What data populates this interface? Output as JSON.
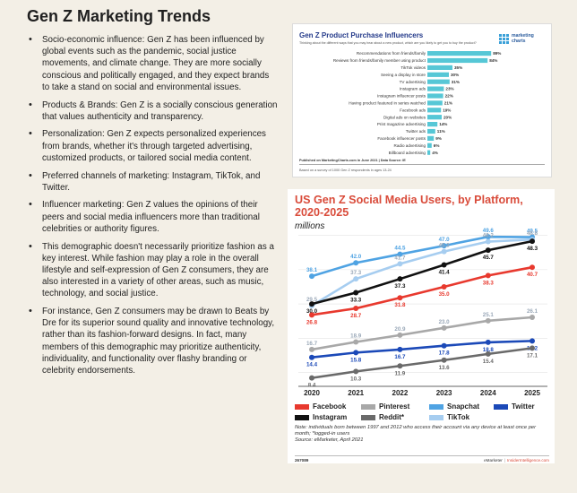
{
  "page": {
    "title": "Gen Z Marketing Trends",
    "bullets": [
      "Socio-economic influence: Gen Z has been influenced by global events such as the pandemic, social justice movements, and climate change. They are more socially conscious and politically engaged, and they expect brands to take a stand on social and environmental issues.",
      "Products & Brands:  Gen Z is a socially conscious generation that values authenticity and transparency.",
      "Personalization: Gen Z expects personalized experiences from brands, whether it's through targeted advertising, customized products, or tailored social media content.",
      "Preferred channels of marketing: Instagram, TikTok, and Twitter.",
      "Influencer marketing: Gen Z values the opinions of their peers and social media influencers more than traditional celebrities or authority figures.",
      "This demographic doesn't necessarily prioritize fashion as a key interest. While fashion may play a role in the overall lifestyle and self-expression of Gen Z consumers, they are also interested in a variety of other areas, such as music, technology, and social justice.",
      "For instance, Gen Z consumers may be drawn to Beats by Dre for its superior sound quality and innovative technology, rather than its fashion-forward designs. In fact, many members of this demographic may prioritize authenticity, individuality, and functionality over flashy branding or celebrity endorsements."
    ]
  },
  "influencer_panel": {
    "logo_text": [
      "marketing",
      "charts"
    ],
    "note": "Published on MarketingCharts.com in June 2021 | Data Source: IE",
    "footer": "Based on a survey of 1000 Gen Z respondents in ages 13-24"
  },
  "social_panel": {
    "legend": [
      {
        "name": "Facebook",
        "color": "#e8392e"
      },
      {
        "name": "Pinterest",
        "color": "#a8a8a8"
      },
      {
        "name": "Snapchat",
        "color": "#4fa3e3"
      },
      {
        "name": "Twitter",
        "color": "#1b49b8"
      },
      {
        "name": "Instagram",
        "color": "#111111"
      },
      {
        "name": "Reddit*",
        "color": "#6a6a6a"
      },
      {
        "name": "TikTok",
        "color": "#a6cdf0"
      }
    ],
    "note": "Note: individuals born between 1997 and 2012 who access their account via any device at least once per month; *logged-in users\nSource: eMarketer, April 2021",
    "code": "267089",
    "brand": "eMarketer",
    "site": "InsiderIntelligence.com"
  },
  "chart_data": [
    {
      "type": "bar",
      "title": "Gen Z Product Purchase Influencers",
      "subtitle": "Thinking about the different ways that you may hear about a new product, which are you likely to get you to buy the product?",
      "categories": [
        "Recommendations from friends/family",
        "Reviews from friends/family member using product",
        "TikTok videos",
        "Seeing a display in store",
        "TV advertising",
        "Instagram ads",
        "Instagram influencer posts",
        "Having product featured in series watched",
        "Facebook ads",
        "Digital ads on websites",
        "Print magazine advertising",
        "Twitter ads",
        "Facebook influencer posts",
        "Radio advertising",
        "Billboard advertising"
      ],
      "values": [
        89,
        84,
        35,
        30,
        31,
        23,
        22,
        21,
        19,
        20,
        14,
        11,
        9,
        6,
        4
      ],
      "value_labels": [
        "89%",
        "84%",
        "35%",
        "30%",
        "31%",
        "23%",
        "22%",
        "21%",
        "19%",
        "20%",
        "14%",
        "11%",
        "9%",
        "6%",
        "4%"
      ],
      "xlim": [
        0,
        100
      ],
      "bar_color": "#56c7d6",
      "grid": false
    },
    {
      "type": "line",
      "title": "US Gen Z Social Media Users, by Platform, 2020-2025",
      "ylabel": "millions",
      "x": [
        "2020",
        "2021",
        "2022",
        "2023",
        "2024",
        "2025"
      ],
      "ylim": [
        7,
        52
      ],
      "grid": true,
      "series": [
        {
          "name": "Snapchat",
          "values": [
            38.1,
            42.0,
            44.5,
            47.0,
            49.6,
            49.5
          ],
          "labels": [
            "38.1",
            "42.0",
            "44.5",
            "47.0",
            "49.6",
            "49.5"
          ]
        },
        {
          "name": "TikTok",
          "values": [
            29.5,
            37.3,
            41.7,
            45.3,
            48.2,
            48.8
          ],
          "labels": [
            "29.5",
            "37.3",
            "41.7",
            "45.3",
            "48.2",
            "48.8"
          ]
        },
        {
          "name": "Instagram",
          "values": [
            30.0,
            33.3,
            37.3,
            41.4,
            45.7,
            48.3
          ],
          "labels": [
            "30.0",
            "33.3",
            "37.3",
            "41.4",
            "45.7",
            "48.3"
          ]
        },
        {
          "name": "Facebook",
          "values": [
            26.8,
            28.7,
            31.8,
            35.0,
            38.3,
            40.7
          ],
          "labels": [
            "26.8",
            "28.7",
            "31.8",
            "35.0",
            "38.3",
            "40.7"
          ]
        },
        {
          "name": "Pinterest",
          "values": [
            16.7,
            18.9,
            20.9,
            23.0,
            25.1,
            26.1
          ],
          "labels": [
            "16.7",
            "18.9",
            "20.9",
            "23.0",
            "25.1",
            "26.1"
          ]
        },
        {
          "name": "Twitter",
          "values": [
            14.4,
            15.8,
            16.7,
            17.8,
            18.8,
            19.2
          ],
          "labels": [
            "14.4",
            "15.8",
            "16.7",
            "17.8",
            "18.8",
            "19.2"
          ]
        },
        {
          "name": "Reddit*",
          "values": [
            8.4,
            10.3,
            11.9,
            13.6,
            15.4,
            17.1
          ],
          "labels": [
            "8.4",
            "10.3",
            "11.9",
            "13.6",
            "15.4",
            "17.1"
          ]
        }
      ]
    }
  ]
}
